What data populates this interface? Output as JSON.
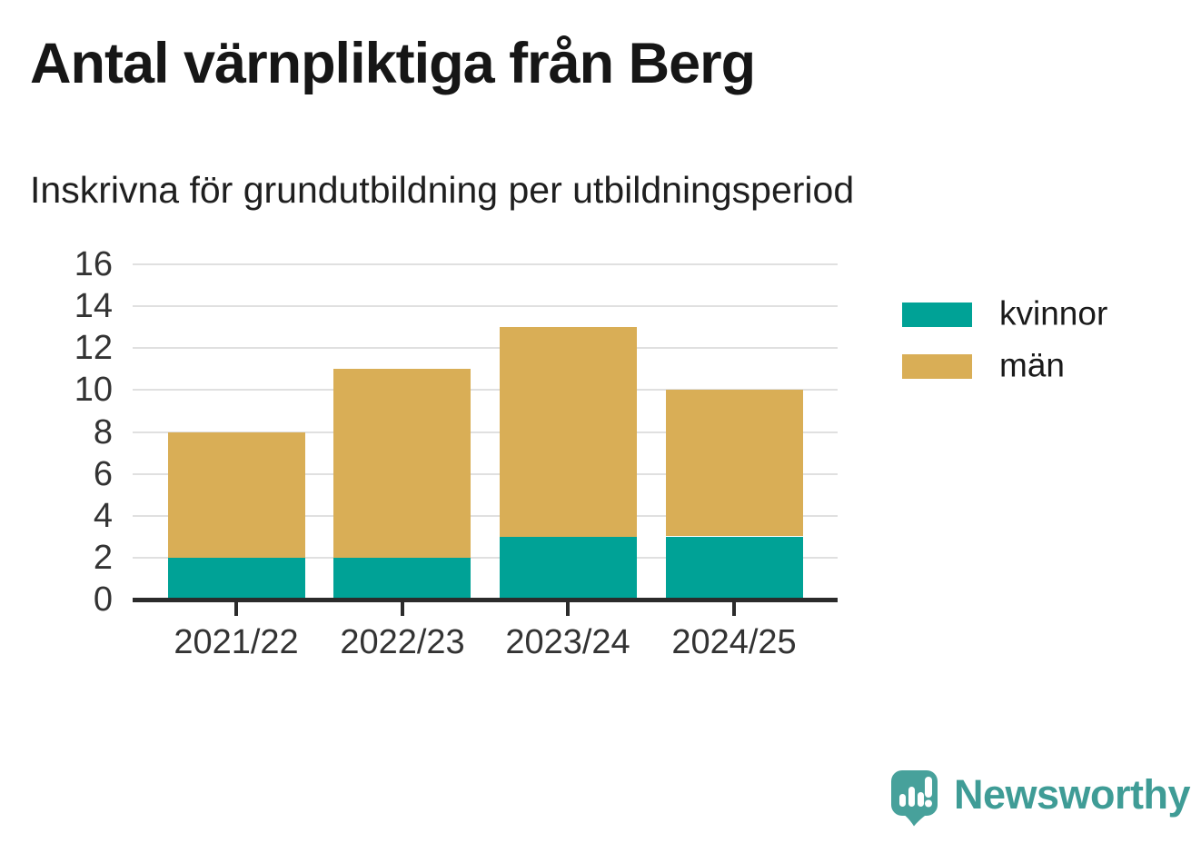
{
  "header": {
    "title": "Antal värnpliktiga från Berg",
    "subtitle": "Inskrivna för grundutbildning per utbildningsperiod"
  },
  "chart_data": {
    "type": "bar",
    "stacked": true,
    "title": "Antal värnpliktiga från Berg",
    "subtitle": "Inskrivna för grundutbildning per utbildningsperiod",
    "categories": [
      "2021/22",
      "2022/23",
      "2023/24",
      "2024/25"
    ],
    "series": [
      {
        "name": "kvinnor",
        "color": "#00A296",
        "values": [
          2,
          2,
          3,
          3
        ]
      },
      {
        "name": "män",
        "color": "#D9AE56",
        "values": [
          6,
          9,
          10,
          7
        ]
      }
    ],
    "totals": [
      8,
      11,
      13,
      10
    ],
    "xlabel": "",
    "ylabel": "",
    "ylim": [
      0,
      16
    ],
    "yticks": [
      0,
      2,
      4,
      6,
      8,
      10,
      12,
      14,
      16
    ],
    "grid": "horizontal",
    "legend_position": "right"
  },
  "branding": {
    "logo_text": "Newsworthy",
    "logo_icon": "bar-chart-speech-bubble-icon",
    "logo_color": "#3f9c96",
    "icon_color": "#47a19b"
  },
  "colors": {
    "background": "#ffffff",
    "grid": "#e0e0e0",
    "axis": "#2b2b2b",
    "axis_text": "#333333",
    "title_text": "#161616",
    "kvinnor": "#00A296",
    "man": "#D9AE56"
  }
}
